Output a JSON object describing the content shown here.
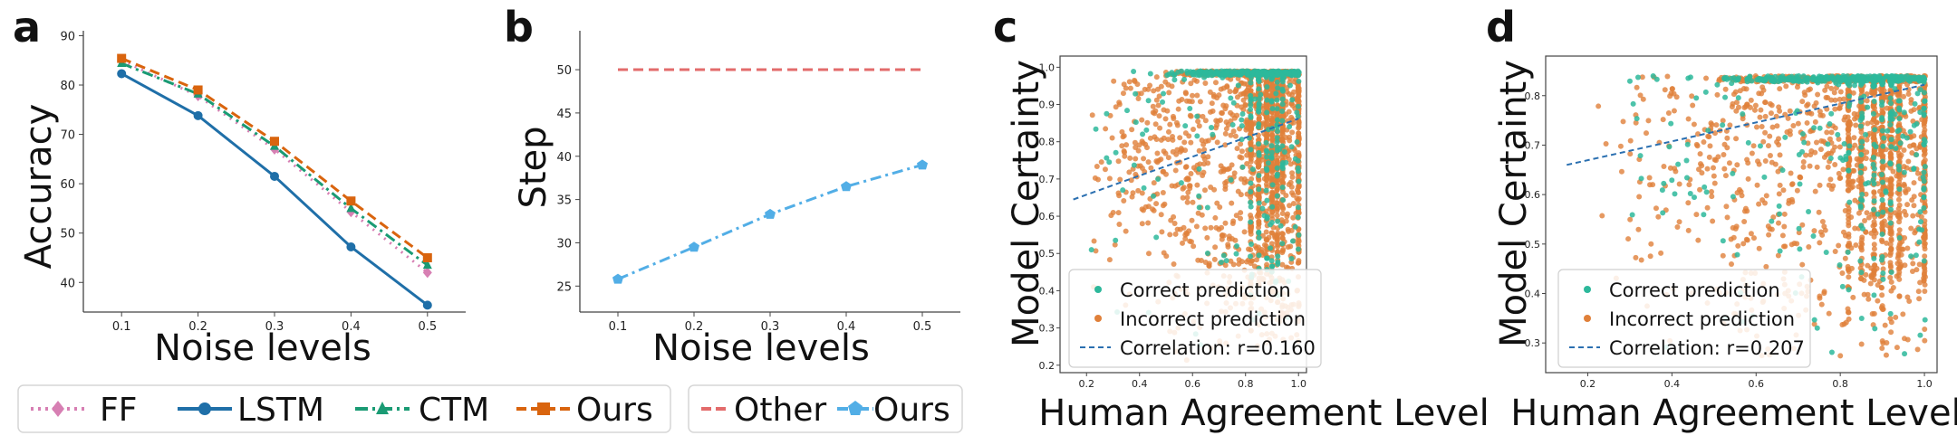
{
  "panels": {
    "a": {
      "letter": "a"
    },
    "b": {
      "letter": "b"
    },
    "c": {
      "letter": "c"
    },
    "d": {
      "letter": "d"
    }
  },
  "chart_data": [
    {
      "id": "a",
      "type": "line",
      "xlabel": "Noise levels",
      "ylabel": "Accuracy",
      "x": [
        0.1,
        0.2,
        0.3,
        0.4,
        0.5
      ],
      "xlim": [
        0.05,
        0.55
      ],
      "ylim": [
        34,
        91
      ],
      "xticks": [
        "0.1",
        "0.2",
        "0.3",
        "0.4",
        "0.5"
      ],
      "yticks": [
        40,
        50,
        60,
        70,
        80,
        90
      ],
      "series": [
        {
          "name": "FF",
          "color": "#d77fb3",
          "dash": "dot",
          "marker": "diamond",
          "values": [
            85.0,
            77.8,
            67.0,
            54.3,
            42.0
          ]
        },
        {
          "name": "LSTM",
          "color": "#1f6fa8",
          "dash": "solid",
          "marker": "circle",
          "values": [
            82.3,
            73.8,
            61.5,
            47.2,
            35.4
          ]
        },
        {
          "name": "CTM",
          "color": "#1a9b74",
          "dash": "dashdot",
          "marker": "triangle",
          "values": [
            84.4,
            78.2,
            67.6,
            55.0,
            43.5
          ]
        },
        {
          "name": "Ours",
          "color": "#d9640e",
          "dash": "dash",
          "marker": "square",
          "values": [
            85.4,
            79.0,
            68.6,
            56.5,
            45.0
          ]
        }
      ]
    },
    {
      "id": "b",
      "type": "line",
      "xlabel": "Noise levels",
      "ylabel": "Step",
      "x": [
        0.1,
        0.2,
        0.3,
        0.4,
        0.5
      ],
      "xlim": [
        0.05,
        0.55
      ],
      "ylim": [
        22,
        54.5
      ],
      "xticks": [
        "0.1",
        "0.2",
        "0.3",
        "0.4",
        "0.5"
      ],
      "yticks": [
        25,
        30,
        35,
        40,
        45,
        50
      ],
      "series": [
        {
          "name": "Other",
          "color": "#e36b6b",
          "dash": "dash",
          "marker": "none",
          "values": [
            50,
            50,
            50,
            50,
            50
          ]
        },
        {
          "name": "Ours",
          "color": "#52aee6",
          "dash": "dashdot",
          "marker": "pentagon",
          "values": [
            25.8,
            29.5,
            33.3,
            36.5,
            39.0
          ]
        }
      ]
    },
    {
      "id": "c",
      "type": "scatter",
      "xlabel": "Human Agreement Level",
      "ylabel": "Model Certainty",
      "xlim": [
        0.1,
        1.03
      ],
      "ylim": [
        0.18,
        1.03
      ],
      "xticks": [
        "0.2",
        "0.4",
        "0.6",
        "0.8",
        "1.0"
      ],
      "yticks": [
        "0.2",
        "0.3",
        "0.4",
        "0.5",
        "0.6",
        "0.7",
        "0.8",
        "0.9",
        "1.0"
      ],
      "series": [
        {
          "name": "Correct prediction",
          "color": "#2db89b"
        },
        {
          "name": "Incorrect prediction",
          "color": "#e0803a"
        }
      ],
      "trend": {
        "label": "Correlation: r=0.160",
        "color": "#2a6fb0",
        "x": [
          0.15,
          1.0
        ],
        "y": [
          0.645,
          0.862
        ]
      }
    },
    {
      "id": "d",
      "type": "scatter",
      "xlabel": "Human Agreement Level",
      "ylabel": "Model Certainty",
      "xlim": [
        0.1,
        1.03
      ],
      "ylim": [
        0.24,
        0.88
      ],
      "xticks": [
        "0.2",
        "0.4",
        "0.6",
        "0.8",
        "1.0"
      ],
      "yticks": [
        "0.3",
        "0.4",
        "0.5",
        "0.6",
        "0.7",
        "0.8"
      ],
      "series": [
        {
          "name": "Correct prediction",
          "color": "#2db89b"
        },
        {
          "name": "Incorrect prediction",
          "color": "#e0803a"
        }
      ],
      "trend": {
        "label": "Correlation: r=0.207",
        "color": "#2a6fb0",
        "x": [
          0.15,
          1.0
        ],
        "y": [
          0.66,
          0.822
        ]
      }
    }
  ]
}
